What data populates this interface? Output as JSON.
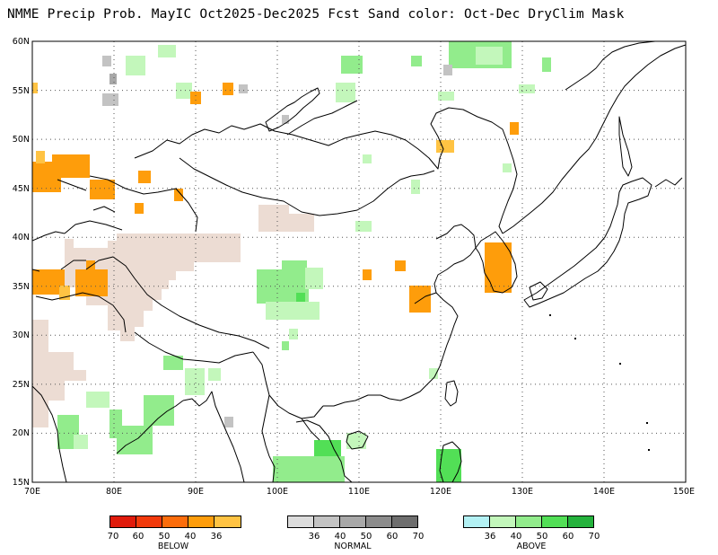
{
  "title": "NMME Precip Prob. MayIC  Oct2025-Dec2025 Fcst  Sand color: Oct-Dec DryClim Mask",
  "map": {
    "lon_range": [
      70,
      150
    ],
    "lat_range": [
      15,
      60
    ],
    "lat_labels": [
      "60N",
      "55N",
      "50N",
      "45N",
      "40N",
      "35N",
      "30N",
      "25N",
      "20N",
      "15N"
    ],
    "lon_labels": [
      "70E",
      "80E",
      "90E",
      "100E",
      "110E",
      "120E",
      "130E",
      "140E",
      "150E"
    ],
    "dry_mask_color": "#ecdcd3",
    "grid": true
  },
  "legend": {
    "below": {
      "title": "BELOW",
      "labels": [
        "70",
        "60",
        "50",
        "40",
        "36"
      ],
      "colors": [
        "#e01b0b",
        "#f23a0b",
        "#fc6d0b",
        "#fe9d0b",
        "#ffc343"
      ]
    },
    "normal": {
      "title": "NORMAL",
      "labels": [
        "36",
        "40",
        "50",
        "60",
        "70"
      ],
      "colors": [
        "#dcdcdc",
        "#c3c3c3",
        "#a8a8a8",
        "#8c8c8c",
        "#6e6e6e"
      ]
    },
    "above": {
      "title": "ABOVE",
      "labels": [
        "36",
        "40",
        "50",
        "60",
        "70"
      ],
      "colors": [
        "#b3f1f4",
        "#c3f7bb",
        "#92ec8c",
        "#52df56",
        "#24b23c"
      ]
    }
  }
}
